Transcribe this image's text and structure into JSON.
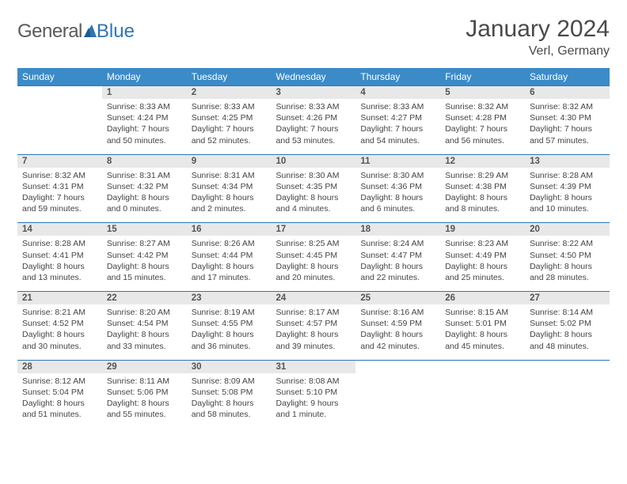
{
  "logo": {
    "text1": "General",
    "text2": "Blue"
  },
  "title": "January 2024",
  "location": "Verl, Germany",
  "weekdays": [
    "Sunday",
    "Monday",
    "Tuesday",
    "Wednesday",
    "Thursday",
    "Friday",
    "Saturday"
  ],
  "colors": {
    "header_bg": "#3b8bc9",
    "header_text": "#ffffff",
    "daynum_bg": "#e8e8e8",
    "border": "#2e75b6",
    "text": "#4a4a4a",
    "logo_blue": "#2e75b6"
  },
  "weeks": [
    {
      "nums": [
        "",
        "1",
        "2",
        "3",
        "4",
        "5",
        "6"
      ],
      "cells": [
        null,
        {
          "sunrise": "Sunrise: 8:33 AM",
          "sunset": "Sunset: 4:24 PM",
          "day1": "Daylight: 7 hours",
          "day2": "and 50 minutes."
        },
        {
          "sunrise": "Sunrise: 8:33 AM",
          "sunset": "Sunset: 4:25 PM",
          "day1": "Daylight: 7 hours",
          "day2": "and 52 minutes."
        },
        {
          "sunrise": "Sunrise: 8:33 AM",
          "sunset": "Sunset: 4:26 PM",
          "day1": "Daylight: 7 hours",
          "day2": "and 53 minutes."
        },
        {
          "sunrise": "Sunrise: 8:33 AM",
          "sunset": "Sunset: 4:27 PM",
          "day1": "Daylight: 7 hours",
          "day2": "and 54 minutes."
        },
        {
          "sunrise": "Sunrise: 8:32 AM",
          "sunset": "Sunset: 4:28 PM",
          "day1": "Daylight: 7 hours",
          "day2": "and 56 minutes."
        },
        {
          "sunrise": "Sunrise: 8:32 AM",
          "sunset": "Sunset: 4:30 PM",
          "day1": "Daylight: 7 hours",
          "day2": "and 57 minutes."
        }
      ]
    },
    {
      "nums": [
        "7",
        "8",
        "9",
        "10",
        "11",
        "12",
        "13"
      ],
      "cells": [
        {
          "sunrise": "Sunrise: 8:32 AM",
          "sunset": "Sunset: 4:31 PM",
          "day1": "Daylight: 7 hours",
          "day2": "and 59 minutes."
        },
        {
          "sunrise": "Sunrise: 8:31 AM",
          "sunset": "Sunset: 4:32 PM",
          "day1": "Daylight: 8 hours",
          "day2": "and 0 minutes."
        },
        {
          "sunrise": "Sunrise: 8:31 AM",
          "sunset": "Sunset: 4:34 PM",
          "day1": "Daylight: 8 hours",
          "day2": "and 2 minutes."
        },
        {
          "sunrise": "Sunrise: 8:30 AM",
          "sunset": "Sunset: 4:35 PM",
          "day1": "Daylight: 8 hours",
          "day2": "and 4 minutes."
        },
        {
          "sunrise": "Sunrise: 8:30 AM",
          "sunset": "Sunset: 4:36 PM",
          "day1": "Daylight: 8 hours",
          "day2": "and 6 minutes."
        },
        {
          "sunrise": "Sunrise: 8:29 AM",
          "sunset": "Sunset: 4:38 PM",
          "day1": "Daylight: 8 hours",
          "day2": "and 8 minutes."
        },
        {
          "sunrise": "Sunrise: 8:28 AM",
          "sunset": "Sunset: 4:39 PM",
          "day1": "Daylight: 8 hours",
          "day2": "and 10 minutes."
        }
      ]
    },
    {
      "nums": [
        "14",
        "15",
        "16",
        "17",
        "18",
        "19",
        "20"
      ],
      "cells": [
        {
          "sunrise": "Sunrise: 8:28 AM",
          "sunset": "Sunset: 4:41 PM",
          "day1": "Daylight: 8 hours",
          "day2": "and 13 minutes."
        },
        {
          "sunrise": "Sunrise: 8:27 AM",
          "sunset": "Sunset: 4:42 PM",
          "day1": "Daylight: 8 hours",
          "day2": "and 15 minutes."
        },
        {
          "sunrise": "Sunrise: 8:26 AM",
          "sunset": "Sunset: 4:44 PM",
          "day1": "Daylight: 8 hours",
          "day2": "and 17 minutes."
        },
        {
          "sunrise": "Sunrise: 8:25 AM",
          "sunset": "Sunset: 4:45 PM",
          "day1": "Daylight: 8 hours",
          "day2": "and 20 minutes."
        },
        {
          "sunrise": "Sunrise: 8:24 AM",
          "sunset": "Sunset: 4:47 PM",
          "day1": "Daylight: 8 hours",
          "day2": "and 22 minutes."
        },
        {
          "sunrise": "Sunrise: 8:23 AM",
          "sunset": "Sunset: 4:49 PM",
          "day1": "Daylight: 8 hours",
          "day2": "and 25 minutes."
        },
        {
          "sunrise": "Sunrise: 8:22 AM",
          "sunset": "Sunset: 4:50 PM",
          "day1": "Daylight: 8 hours",
          "day2": "and 28 minutes."
        }
      ]
    },
    {
      "nums": [
        "21",
        "22",
        "23",
        "24",
        "25",
        "26",
        "27"
      ],
      "cells": [
        {
          "sunrise": "Sunrise: 8:21 AM",
          "sunset": "Sunset: 4:52 PM",
          "day1": "Daylight: 8 hours",
          "day2": "and 30 minutes."
        },
        {
          "sunrise": "Sunrise: 8:20 AM",
          "sunset": "Sunset: 4:54 PM",
          "day1": "Daylight: 8 hours",
          "day2": "and 33 minutes."
        },
        {
          "sunrise": "Sunrise: 8:19 AM",
          "sunset": "Sunset: 4:55 PM",
          "day1": "Daylight: 8 hours",
          "day2": "and 36 minutes."
        },
        {
          "sunrise": "Sunrise: 8:17 AM",
          "sunset": "Sunset: 4:57 PM",
          "day1": "Daylight: 8 hours",
          "day2": "and 39 minutes."
        },
        {
          "sunrise": "Sunrise: 8:16 AM",
          "sunset": "Sunset: 4:59 PM",
          "day1": "Daylight: 8 hours",
          "day2": "and 42 minutes."
        },
        {
          "sunrise": "Sunrise: 8:15 AM",
          "sunset": "Sunset: 5:01 PM",
          "day1": "Daylight: 8 hours",
          "day2": "and 45 minutes."
        },
        {
          "sunrise": "Sunrise: 8:14 AM",
          "sunset": "Sunset: 5:02 PM",
          "day1": "Daylight: 8 hours",
          "day2": "and 48 minutes."
        }
      ]
    },
    {
      "nums": [
        "28",
        "29",
        "30",
        "31",
        "",
        "",
        ""
      ],
      "cells": [
        {
          "sunrise": "Sunrise: 8:12 AM",
          "sunset": "Sunset: 5:04 PM",
          "day1": "Daylight: 8 hours",
          "day2": "and 51 minutes."
        },
        {
          "sunrise": "Sunrise: 8:11 AM",
          "sunset": "Sunset: 5:06 PM",
          "day1": "Daylight: 8 hours",
          "day2": "and 55 minutes."
        },
        {
          "sunrise": "Sunrise: 8:09 AM",
          "sunset": "Sunset: 5:08 PM",
          "day1": "Daylight: 8 hours",
          "day2": "and 58 minutes."
        },
        {
          "sunrise": "Sunrise: 8:08 AM",
          "sunset": "Sunset: 5:10 PM",
          "day1": "Daylight: 9 hours",
          "day2": "and 1 minute."
        },
        null,
        null,
        null
      ]
    }
  ]
}
